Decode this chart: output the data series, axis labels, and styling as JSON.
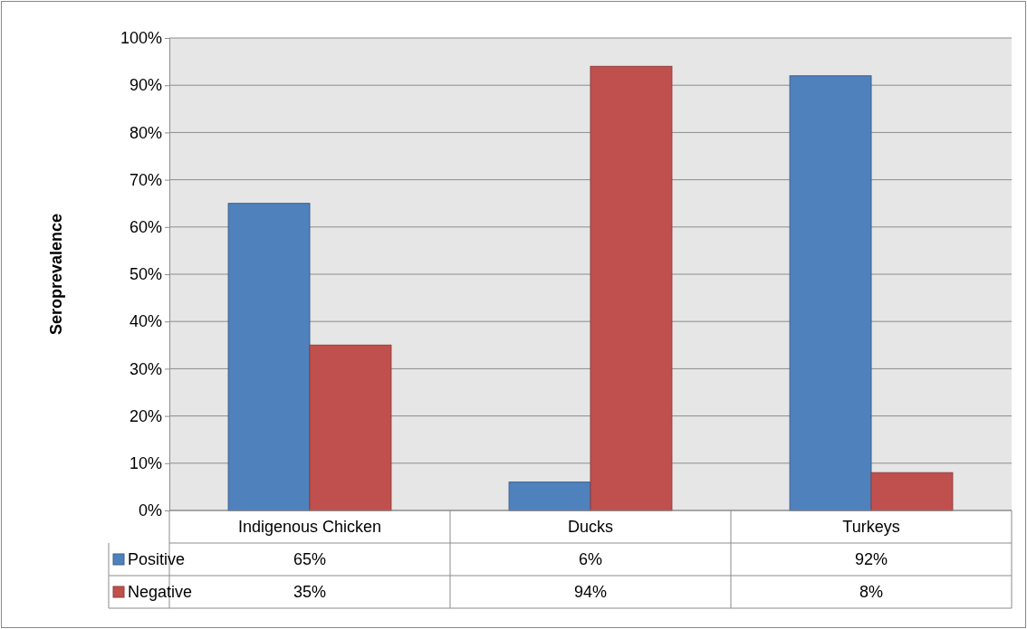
{
  "chart_data": {
    "type": "bar",
    "ylabel": "Seroprevalence",
    "categories": [
      "Indigenous Chicken",
      "Ducks",
      "Turkeys"
    ],
    "series": [
      {
        "name": "Positive",
        "color": "#4f81bd",
        "values": [
          65,
          6,
          92
        ],
        "value_labels": [
          "65%",
          "6%",
          "92%"
        ]
      },
      {
        "name": "Negative",
        "color": "#c0504d",
        "values": [
          35,
          94,
          8
        ],
        "value_labels": [
          "35%",
          "94%",
          "8%"
        ]
      }
    ],
    "ylim": [
      0,
      100
    ],
    "yticks": [
      {
        "value": 0,
        "label": "0%"
      },
      {
        "value": 10,
        "label": "10%"
      },
      {
        "value": 20,
        "label": "20%"
      },
      {
        "value": 30,
        "label": "30%"
      },
      {
        "value": 40,
        "label": "40%"
      },
      {
        "value": 50,
        "label": "50%"
      },
      {
        "value": 60,
        "label": "60%"
      },
      {
        "value": 70,
        "label": "70%"
      },
      {
        "value": 80,
        "label": "80%"
      },
      {
        "value": 90,
        "label": "90%"
      },
      {
        "value": 100,
        "label": "100%"
      }
    ],
    "grid": "y",
    "legend": "bottom"
  }
}
